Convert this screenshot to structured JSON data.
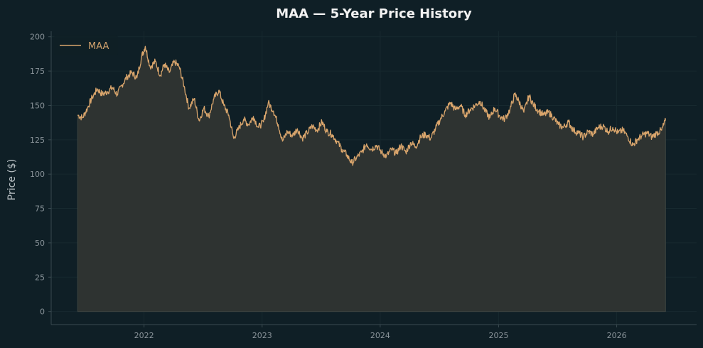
{
  "chart_data": {
    "type": "area",
    "title": "MAA — 5-Year Price History",
    "xlabel": "",
    "ylabel": "Price ($)",
    "ylim": [
      -9.5,
      204
    ],
    "xlim": [
      "2021-03-20",
      "2026-09-05"
    ],
    "grid": true,
    "legend_position": "top-left",
    "x_ticks": [
      "2022",
      "2023",
      "2024",
      "2025",
      "2026"
    ],
    "y_ticks": [
      0,
      25,
      50,
      75,
      100,
      125,
      150,
      175,
      200
    ],
    "series": [
      {
        "name": "MAA",
        "color": "#d9a56c",
        "fill_color": "#2e3331",
        "points": [
          [
            "2021-06-10",
            143
          ],
          [
            "2021-06-25",
            141
          ],
          [
            "2021-07-10",
            148
          ],
          [
            "2021-07-25",
            156
          ],
          [
            "2021-08-10",
            162
          ],
          [
            "2021-08-25",
            158
          ],
          [
            "2021-09-10",
            160
          ],
          [
            "2021-09-25",
            163
          ],
          [
            "2021-10-10",
            158
          ],
          [
            "2021-10-25",
            165
          ],
          [
            "2021-11-10",
            171
          ],
          [
            "2021-11-25",
            174
          ],
          [
            "2021-12-10",
            170
          ],
          [
            "2021-12-25",
            186
          ],
          [
            "2022-01-05",
            193
          ],
          [
            "2022-01-20",
            178
          ],
          [
            "2022-02-05",
            182
          ],
          [
            "2022-02-20",
            172
          ],
          [
            "2022-03-05",
            180
          ],
          [
            "2022-03-20",
            174
          ],
          [
            "2022-04-05",
            182
          ],
          [
            "2022-04-20",
            178
          ],
          [
            "2022-05-05",
            164
          ],
          [
            "2022-05-20",
            148
          ],
          [
            "2022-06-05",
            155
          ],
          [
            "2022-06-20",
            139
          ],
          [
            "2022-07-05",
            148
          ],
          [
            "2022-07-20",
            142
          ],
          [
            "2022-08-05",
            155
          ],
          [
            "2022-08-20",
            161
          ],
          [
            "2022-09-05",
            150
          ],
          [
            "2022-09-20",
            143
          ],
          [
            "2022-10-05",
            126
          ],
          [
            "2022-10-20",
            133
          ],
          [
            "2022-11-05",
            140
          ],
          [
            "2022-11-20",
            136
          ],
          [
            "2022-12-05",
            142
          ],
          [
            "2022-12-20",
            134
          ],
          [
            "2023-01-05",
            138
          ],
          [
            "2023-01-20",
            152
          ],
          [
            "2023-02-05",
            146
          ],
          [
            "2023-02-20",
            136
          ],
          [
            "2023-03-05",
            124
          ],
          [
            "2023-03-20",
            131
          ],
          [
            "2023-04-05",
            128
          ],
          [
            "2023-04-20",
            133
          ],
          [
            "2023-05-05",
            126
          ],
          [
            "2023-05-20",
            130
          ],
          [
            "2023-06-05",
            135
          ],
          [
            "2023-06-20",
            132
          ],
          [
            "2023-07-05",
            138
          ],
          [
            "2023-07-20",
            131
          ],
          [
            "2023-08-05",
            129
          ],
          [
            "2023-08-20",
            124
          ],
          [
            "2023-09-05",
            118
          ],
          [
            "2023-09-20",
            114
          ],
          [
            "2023-10-05",
            108
          ],
          [
            "2023-10-20",
            112
          ],
          [
            "2023-11-05",
            116
          ],
          [
            "2023-11-20",
            122
          ],
          [
            "2023-12-05",
            118
          ],
          [
            "2023-12-20",
            121
          ],
          [
            "2024-01-05",
            116
          ],
          [
            "2024-01-20",
            113
          ],
          [
            "2024-02-05",
            118
          ],
          [
            "2024-02-20",
            115
          ],
          [
            "2024-03-05",
            121
          ],
          [
            "2024-03-20",
            116
          ],
          [
            "2024-04-05",
            123
          ],
          [
            "2024-04-20",
            120
          ],
          [
            "2024-05-05",
            127
          ],
          [
            "2024-05-20",
            129
          ],
          [
            "2024-06-05",
            126
          ],
          [
            "2024-06-20",
            133
          ],
          [
            "2024-07-05",
            140
          ],
          [
            "2024-07-20",
            146
          ],
          [
            "2024-08-05",
            152
          ],
          [
            "2024-08-20",
            147
          ],
          [
            "2024-09-05",
            150
          ],
          [
            "2024-09-20",
            143
          ],
          [
            "2024-10-05",
            147
          ],
          [
            "2024-10-20",
            150
          ],
          [
            "2024-11-05",
            153
          ],
          [
            "2024-11-20",
            146
          ],
          [
            "2024-12-05",
            141
          ],
          [
            "2024-12-20",
            148
          ],
          [
            "2025-01-05",
            142
          ],
          [
            "2025-01-20",
            140
          ],
          [
            "2025-02-05",
            147
          ],
          [
            "2025-02-20",
            158
          ],
          [
            "2025-03-05",
            153
          ],
          [
            "2025-03-20",
            145
          ],
          [
            "2025-04-05",
            157
          ],
          [
            "2025-04-20",
            150
          ],
          [
            "2025-05-05",
            146
          ],
          [
            "2025-05-20",
            143
          ],
          [
            "2025-06-05",
            145
          ],
          [
            "2025-06-20",
            141
          ],
          [
            "2025-07-05",
            136
          ],
          [
            "2025-07-20",
            134
          ],
          [
            "2025-08-05",
            138
          ],
          [
            "2025-08-20",
            132
          ],
          [
            "2025-09-05",
            130
          ],
          [
            "2025-09-20",
            127
          ],
          [
            "2025-10-05",
            131
          ],
          [
            "2025-10-20",
            129
          ],
          [
            "2025-11-05",
            134
          ],
          [
            "2025-11-20",
            135
          ],
          [
            "2025-12-05",
            131
          ],
          [
            "2025-12-20",
            134
          ],
          [
            "2026-01-05",
            130
          ],
          [
            "2026-01-20",
            132
          ],
          [
            "2026-02-05",
            127
          ],
          [
            "2026-02-20",
            121
          ],
          [
            "2026-03-05",
            125
          ],
          [
            "2026-03-20",
            128
          ],
          [
            "2026-04-05",
            130
          ],
          [
            "2026-04-20",
            127
          ],
          [
            "2026-05-05",
            130
          ],
          [
            "2026-05-20",
            132
          ],
          [
            "2026-06-01",
            139
          ]
        ]
      }
    ]
  }
}
